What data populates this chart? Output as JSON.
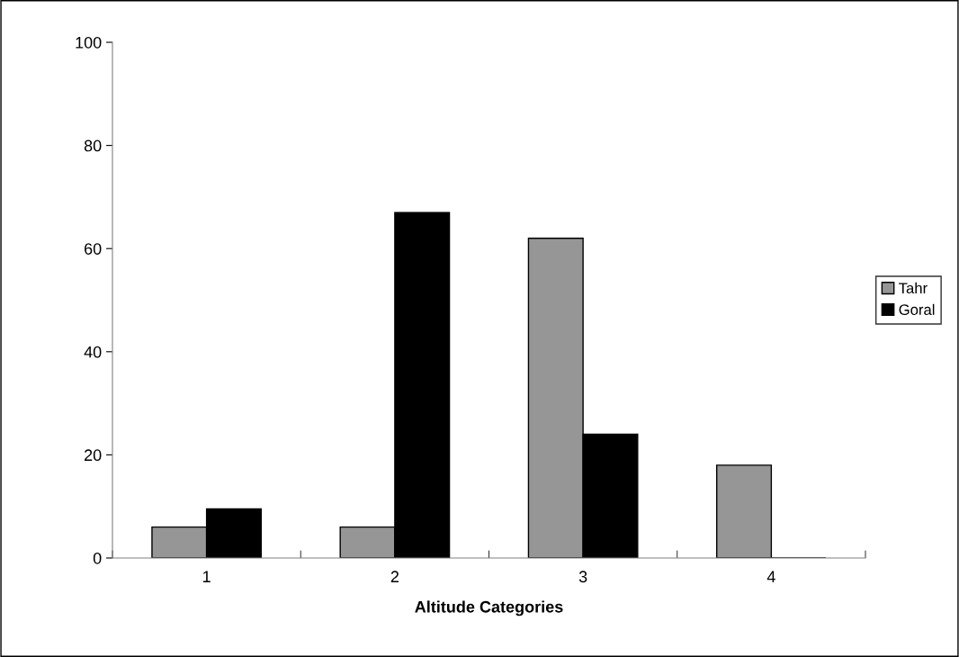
{
  "chart_data": {
    "type": "bar",
    "xlabel": "Altitude Categories",
    "categories": [
      "1",
      "2",
      "3",
      "4"
    ],
    "series": [
      {
        "name": "Tahr",
        "color": "#969696",
        "values": [
          6,
          6,
          62,
          18
        ]
      },
      {
        "name": "Goral",
        "color": "#000000",
        "values": [
          9.5,
          67,
          24,
          0
        ]
      }
    ],
    "ylim": [
      0,
      100
    ],
    "yticks": [
      0,
      20,
      40,
      60,
      80,
      100
    ],
    "grid": false,
    "legend": "right"
  }
}
